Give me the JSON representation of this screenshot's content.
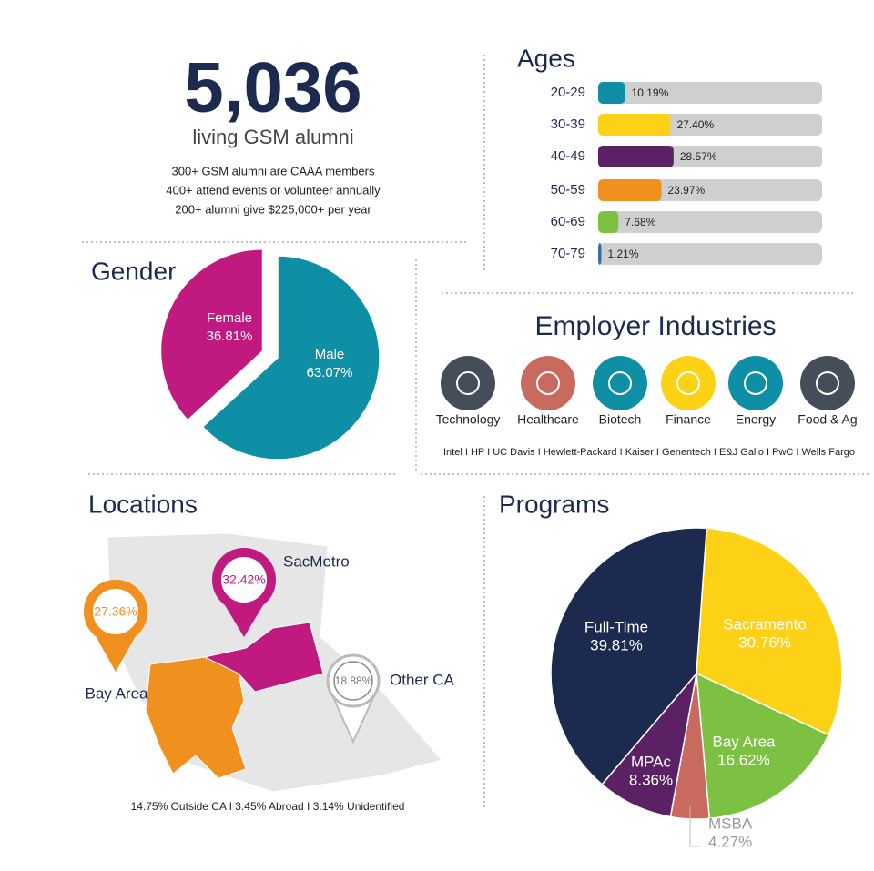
{
  "header": {
    "total": "5,036",
    "subtitle": "living GSM alumni",
    "facts": [
      "300+ GSM alumni are CAAA members",
      "400+ attend events or volunteer annually",
      "200+ alumni give $225,000+ per year"
    ]
  },
  "chart_data": [
    {
      "type": "pie",
      "title": "Gender",
      "categories": [
        "Male",
        "Female"
      ],
      "values": [
        63.07,
        36.81
      ],
      "value_labels": [
        "63.07%",
        "36.81%"
      ],
      "colors": [
        "#0e8fa5",
        "#c0197f"
      ]
    },
    {
      "type": "bar",
      "title": "Ages",
      "categories": [
        "20-29",
        "30-39",
        "40-49",
        "50-59",
        "60-69",
        "70-79"
      ],
      "values": [
        10.19,
        27.4,
        28.57,
        23.97,
        7.68,
        1.21
      ],
      "value_labels": [
        "10.19%",
        "27.40%",
        "28.57%",
        "23.97%",
        "7.68%",
        "1.21%"
      ],
      "colors": [
        "#0e8fa5",
        "#fcd116",
        "#5c2165",
        "#f0901e",
        "#7dc142",
        "#3a6ea5"
      ]
    },
    {
      "type": "pie",
      "title": "Programs",
      "categories": [
        "Sacramento",
        "Bay Area",
        "MSBA",
        "MPAc",
        "Full-Time"
      ],
      "values": [
        30.76,
        16.62,
        4.27,
        8.36,
        39.81
      ],
      "value_labels": [
        "30.76%",
        "16.62%",
        "4.27%",
        "8.36%",
        "39.81%"
      ],
      "colors": [
        "#fcd116",
        "#7dc142",
        "#c96a5e",
        "#5c2165",
        "#1b2a4e"
      ]
    }
  ],
  "employers": {
    "title": "Employer Industries",
    "industries": [
      "Technology",
      "Healthcare",
      "Biotech",
      "Finance",
      "Energy",
      "Food & Ag"
    ],
    "companies": "Intel I HP I UC Davis I Hewlett-Packard I Kaiser I Genentech I E&J Gallo I PwC I Wells Fargo"
  },
  "locations": {
    "title": "Locations",
    "regions": [
      {
        "name": "Bay Area",
        "share": "27.36%"
      },
      {
        "name": "SacMetro",
        "share": "32.42%"
      },
      {
        "name": "Other CA",
        "share": "18.88%"
      }
    ],
    "footnote": "14.75% Outside CA  I 3.45% Abroad I 3.14% Unidentified"
  }
}
